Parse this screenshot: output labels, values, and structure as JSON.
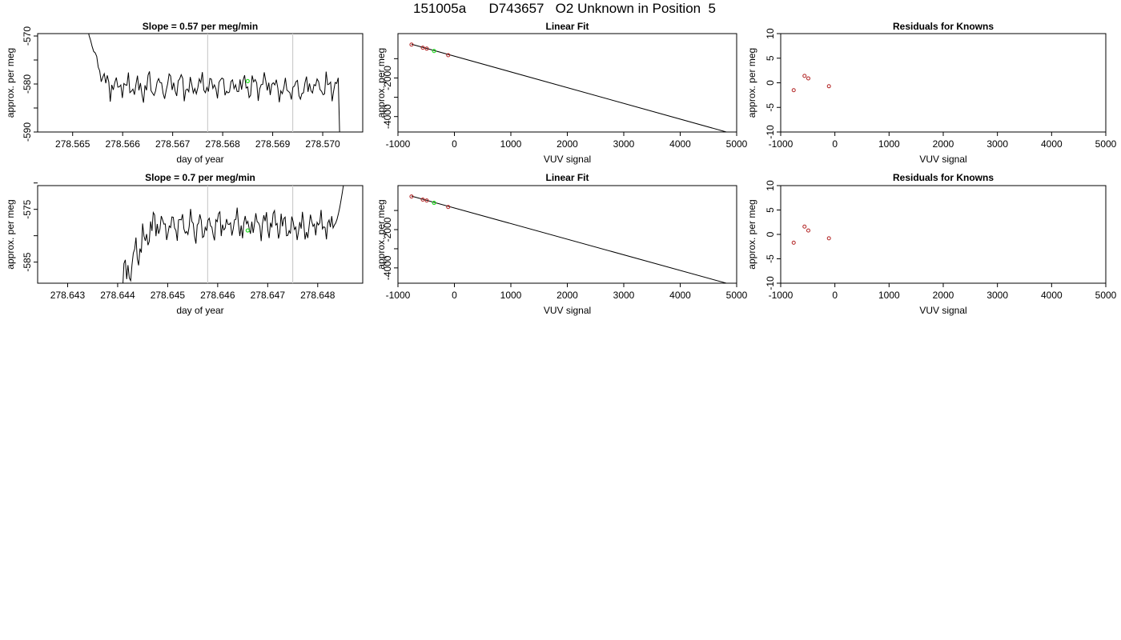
{
  "page_title": "151005a      D743657   O2 Unknown in Position  5",
  "colors": {
    "line": "#000000",
    "known_points": "#b22222",
    "unknown_point": "#22dd22",
    "marker_lines": "#cccccc"
  },
  "chart_data": [
    {
      "type": "line",
      "title": "Slope =  0.57  per meg/min",
      "xlabel": "day of year",
      "ylabel": "approx. per meg",
      "xlim": [
        278.5643,
        278.5708
      ],
      "ylim": [
        -590,
        -569.5
      ],
      "xticks": [
        278.565,
        278.566,
        278.567,
        278.568,
        278.569,
        278.57
      ],
      "xtick_labels": [
        "278.565",
        "278.566",
        "278.567",
        "278.568",
        "278.569",
        "278.570"
      ],
      "yticks": [
        -590,
        -580,
        -570
      ],
      "ytick_labels": [
        "-590",
        "-580",
        "-570"
      ],
      "minor_yticks": [
        -585,
        -575
      ],
      "vlines": [
        278.5677,
        278.5694
      ],
      "trace_start": 278.5653,
      "trace_end": 278.5704,
      "trace_base": -580.5,
      "unknown_point": {
        "x": 278.5685,
        "y": -579.4
      }
    },
    {
      "type": "scatter",
      "title": "Linear Fit",
      "xlabel": "VUV signal",
      "ylabel": "approx. per meg",
      "xlim": [
        -1000,
        5000
      ],
      "ylim": [
        -4800,
        300
      ],
      "xticks": [
        -1000,
        0,
        1000,
        2000,
        3000,
        4000,
        5000
      ],
      "xtick_labels": [
        "-1000",
        "0",
        "1000",
        "2000",
        "3000",
        "4000",
        "5000"
      ],
      "yticks": [
        -4000,
        -2000
      ],
      "ytick_labels": [
        "-4000",
        "-2000"
      ],
      "minor_yticks": [
        -3000,
        -1000
      ],
      "fit_line": {
        "x1": -760,
        "y1": -250,
        "x2": 4880,
        "y2": -4850
      },
      "knowns": [
        {
          "x": -760,
          "y": -270
        },
        {
          "x": -560,
          "y": -430
        },
        {
          "x": -490,
          "y": -480
        },
        {
          "x": -110,
          "y": -820
        }
      ],
      "unknown_point": {
        "x": -360,
        "y": -600
      }
    },
    {
      "type": "scatter",
      "title": "Residuals for Knowns",
      "xlabel": "VUV signal",
      "ylabel": "approx. per meg",
      "xlim": [
        -1000,
        5000
      ],
      "ylim": [
        -10,
        10
      ],
      "xticks": [
        -1000,
        0,
        1000,
        2000,
        3000,
        4000,
        5000
      ],
      "xtick_labels": [
        "-1000",
        "0",
        "1000",
        "2000",
        "3000",
        "4000",
        "5000"
      ],
      "yticks": [
        -10,
        -5,
        0,
        5,
        10
      ],
      "ytick_labels": [
        "-10",
        "-5",
        "0",
        "5",
        "10"
      ],
      "knowns": [
        {
          "x": -760,
          "y": -1.5
        },
        {
          "x": -560,
          "y": 1.4
        },
        {
          "x": -490,
          "y": 0.9
        },
        {
          "x": -110,
          "y": -0.7
        }
      ]
    },
    {
      "type": "line",
      "title": "Slope =  0.7  per meg/min",
      "xlabel": "day of year",
      "ylabel": "approx. per meg",
      "xlim": [
        278.6424,
        278.6489
      ],
      "ylim": [
        -589,
        -570.5
      ],
      "xticks": [
        278.643,
        278.644,
        278.645,
        278.646,
        278.647,
        278.648
      ],
      "xtick_labels": [
        "278.643",
        "278.644",
        "278.645",
        "278.646",
        "278.647",
        "278.648"
      ],
      "yticks": [
        -585,
        -575
      ],
      "ytick_labels": [
        "-585",
        "-575"
      ],
      "minor_yticks": [
        -580,
        -570
      ],
      "vlines": [
        278.6458,
        278.6475
      ],
      "trace_start": 278.6441,
      "trace_end": 278.6486,
      "trace_base": -578,
      "unknown_point": {
        "x": 278.6466,
        "y": -579.0
      }
    },
    {
      "type": "scatter",
      "title": "Linear Fit",
      "xlabel": "VUV signal",
      "ylabel": "approx. per meg",
      "xlim": [
        -1000,
        5000
      ],
      "ylim": [
        -4800,
        300
      ],
      "xticks": [
        -1000,
        0,
        1000,
        2000,
        3000,
        4000,
        5000
      ],
      "xtick_labels": [
        "-1000",
        "0",
        "1000",
        "2000",
        "3000",
        "4000",
        "5000"
      ],
      "yticks": [
        -4000,
        -2000
      ],
      "ytick_labels": [
        "-4000",
        "-2000"
      ],
      "minor_yticks": [
        -3000,
        -1000
      ],
      "fit_line": {
        "x1": -760,
        "y1": -250,
        "x2": 4880,
        "y2": -4850
      },
      "knowns": [
        {
          "x": -760,
          "y": -270
        },
        {
          "x": -560,
          "y": -430
        },
        {
          "x": -490,
          "y": -480
        },
        {
          "x": -110,
          "y": -820
        }
      ],
      "unknown_point": {
        "x": -360,
        "y": -600
      }
    },
    {
      "type": "scatter",
      "title": "Residuals for Knowns",
      "xlabel": "VUV signal",
      "ylabel": "approx. per meg",
      "xlim": [
        -1000,
        5000
      ],
      "ylim": [
        -10,
        10
      ],
      "xticks": [
        -1000,
        0,
        1000,
        2000,
        3000,
        4000,
        5000
      ],
      "xtick_labels": [
        "-1000",
        "0",
        "1000",
        "2000",
        "3000",
        "4000",
        "5000"
      ],
      "yticks": [
        -10,
        -5,
        0,
        5,
        10
      ],
      "ytick_labels": [
        "-10",
        "-5",
        "0",
        "5",
        "10"
      ],
      "knowns": [
        {
          "x": -760,
          "y": -1.7
        },
        {
          "x": -560,
          "y": 1.6
        },
        {
          "x": -490,
          "y": 0.8
        },
        {
          "x": -110,
          "y": -0.8
        }
      ]
    }
  ]
}
